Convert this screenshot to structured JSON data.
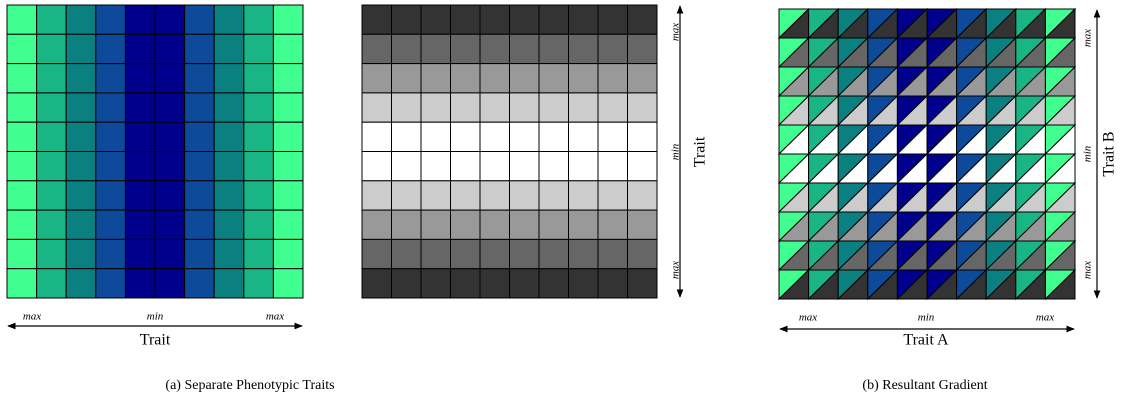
{
  "panels": [
    {
      "x_labels": [
        "max",
        "min",
        "max"
      ],
      "x_axis": "Trait"
    },
    {
      "y_labels": [
        "max",
        "min",
        "max"
      ],
      "y_axis": "Trait"
    },
    {
      "x_labels": [
        "max",
        "min",
        "max"
      ],
      "x_axis": "Trait A",
      "y_labels": [
        "max",
        "min",
        "max"
      ],
      "y_axis": "Trait B"
    }
  ],
  "captions": [
    "(a) Separate Phenotypic Traits",
    "(b) Resultant Gradient"
  ]
}
